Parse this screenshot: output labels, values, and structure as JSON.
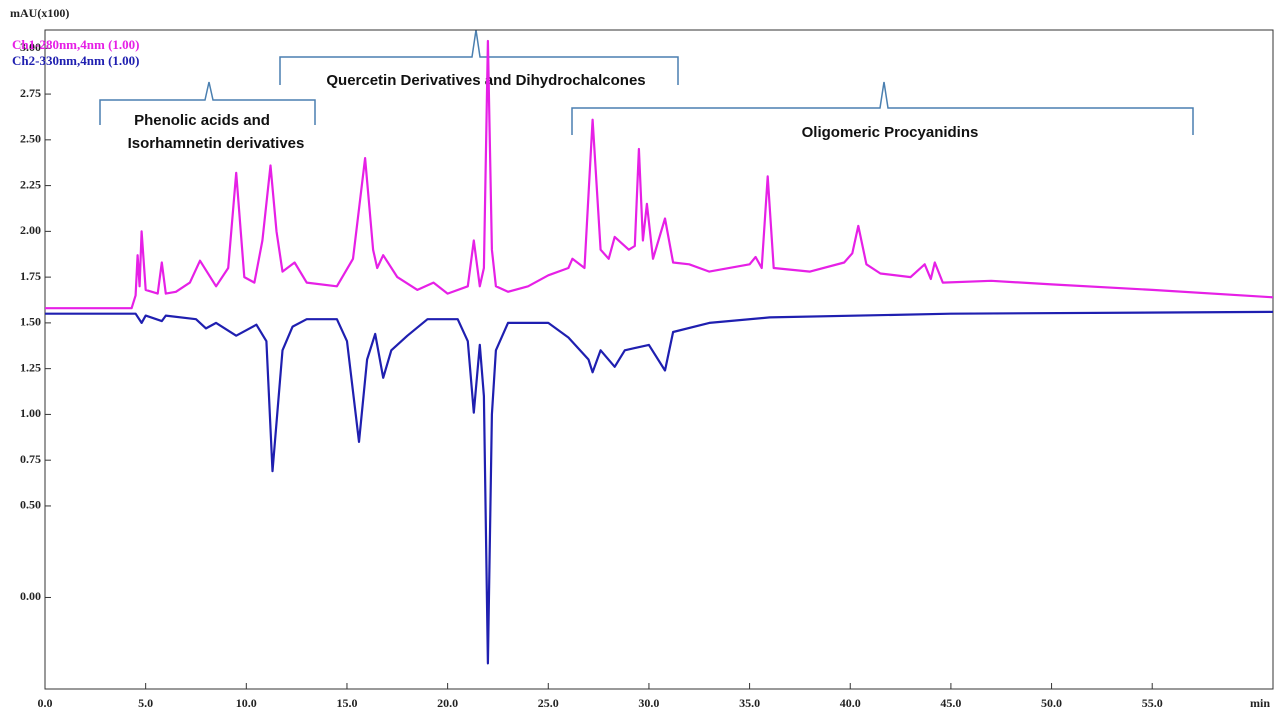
{
  "chart_data": {
    "type": "line",
    "y_label": "mAU(x100)",
    "x_label": "min",
    "xlim": [
      0,
      61
    ],
    "ylim": [
      -0.5,
      3.1
    ],
    "xticks": [
      {
        "value": 0,
        "label": "0.0"
      },
      {
        "value": 5,
        "label": "5.0"
      },
      {
        "value": 10,
        "label": "10.0"
      },
      {
        "value": 15,
        "label": "15.0"
      },
      {
        "value": 20,
        "label": "20.0"
      },
      {
        "value": 25,
        "label": "25.0"
      },
      {
        "value": 30,
        "label": "30.0"
      },
      {
        "value": 35,
        "label": "35.0"
      },
      {
        "value": 40,
        "label": "40.0"
      },
      {
        "value": 45,
        "label": "45.0"
      },
      {
        "value": 50,
        "label": "50.0"
      },
      {
        "value": 55,
        "label": "55.0"
      }
    ],
    "yticks": [
      {
        "value": 0,
        "label": "0.00"
      },
      {
        "value": 0.5,
        "label": "0.50"
      },
      {
        "value": 0.75,
        "label": "0.75"
      },
      {
        "value": 1,
        "label": "1.00"
      },
      {
        "value": 1.25,
        "label": "1.25"
      },
      {
        "value": 1.5,
        "label": "1.50"
      },
      {
        "value": 1.75,
        "label": "1.75"
      },
      {
        "value": 2,
        "label": "2.00"
      },
      {
        "value": 2.25,
        "label": "2.25"
      },
      {
        "value": 2.5,
        "label": "2.50"
      },
      {
        "value": 2.75,
        "label": "2.75"
      },
      {
        "value": 3,
        "label": "3.00"
      }
    ],
    "annotations": [
      "Phenolic acids and",
      "Isorhamnetin derivatives",
      "Quercetin  Derivatives   and Dihydrochalcones",
      "Oligomeric Procyanidins"
    ],
    "series": [
      {
        "name": "Ch1-280nm,4nm (1.00)",
        "color": "#e620e6",
        "x": [
          0,
          4.3,
          4.5,
          4.6,
          4.7,
          4.8,
          5.0,
          5.6,
          5.8,
          6.0,
          6.5,
          7.2,
          7.7,
          8.5,
          9.1,
          9.5,
          9.9,
          10.4,
          10.8,
          11.2,
          11.5,
          11.8,
          12.4,
          13.0,
          14.5,
          15.3,
          15.9,
          16.3,
          16.5,
          16.8,
          17.5,
          18.5,
          19.3,
          20.0,
          21.0,
          21.3,
          21.6,
          21.8,
          22.0,
          22.2,
          22.4,
          23.0,
          24.0,
          25.0,
          26.0,
          26.2,
          26.8,
          27.2,
          27.6,
          28.0,
          28.3,
          29.0,
          29.3,
          29.5,
          29.7,
          29.9,
          30.2,
          30.8,
          31.2,
          32.0,
          33.0,
          35.0,
          35.3,
          35.6,
          35.9,
          36.2,
          38.0,
          39.7,
          40.1,
          40.4,
          40.8,
          41.5,
          43.0,
          43.7,
          44.0,
          44.2,
          44.6,
          47.0,
          50.0,
          55.0,
          61.0
        ],
        "values": [
          1.58,
          1.58,
          1.65,
          1.87,
          1.7,
          2.0,
          1.68,
          1.66,
          1.83,
          1.66,
          1.67,
          1.72,
          1.84,
          1.7,
          1.8,
          2.32,
          1.75,
          1.72,
          1.95,
          2.36,
          2.0,
          1.78,
          1.83,
          1.72,
          1.7,
          1.85,
          2.4,
          1.9,
          1.8,
          1.87,
          1.75,
          1.68,
          1.72,
          1.66,
          1.7,
          1.95,
          1.7,
          1.8,
          3.04,
          1.9,
          1.7,
          1.67,
          1.7,
          1.76,
          1.8,
          1.85,
          1.8,
          2.61,
          1.9,
          1.85,
          1.97,
          1.9,
          1.92,
          2.45,
          1.95,
          2.15,
          1.85,
          2.07,
          1.83,
          1.82,
          1.78,
          1.82,
          1.86,
          1.8,
          2.3,
          1.8,
          1.78,
          1.83,
          1.88,
          2.03,
          1.82,
          1.77,
          1.75,
          1.82,
          1.74,
          1.83,
          1.72,
          1.73,
          1.71,
          1.68,
          1.64
        ]
      },
      {
        "name": "Ch2-330nm,4nm (1.00)",
        "color": "#1f1fb0",
        "x": [
          0,
          4.5,
          4.8,
          5.0,
          5.8,
          6.0,
          7.5,
          8.0,
          8.5,
          9.5,
          10.5,
          11.0,
          11.3,
          11.8,
          12.3,
          13.0,
          14.5,
          15.0,
          15.6,
          16.0,
          16.4,
          16.8,
          17.2,
          18.0,
          19.0,
          20.5,
          21.0,
          21.3,
          21.6,
          21.8,
          22.0,
          22.2,
          22.4,
          23.0,
          25.0,
          26.0,
          27.0,
          27.2,
          27.6,
          28.3,
          28.8,
          30.0,
          30.8,
          31.2,
          33.0,
          36.0,
          45.0,
          61.0
        ],
        "values": [
          1.55,
          1.55,
          1.5,
          1.54,
          1.51,
          1.54,
          1.52,
          1.47,
          1.5,
          1.43,
          1.49,
          1.4,
          0.69,
          1.35,
          1.48,
          1.52,
          1.52,
          1.4,
          0.85,
          1.3,
          1.44,
          1.2,
          1.35,
          1.43,
          1.52,
          1.52,
          1.4,
          1.01,
          1.38,
          1.1,
          -0.36,
          1.0,
          1.35,
          1.5,
          1.5,
          1.42,
          1.3,
          1.23,
          1.35,
          1.26,
          1.35,
          1.38,
          1.24,
          1.45,
          1.5,
          1.53,
          1.55,
          1.56
        ]
      }
    ]
  }
}
